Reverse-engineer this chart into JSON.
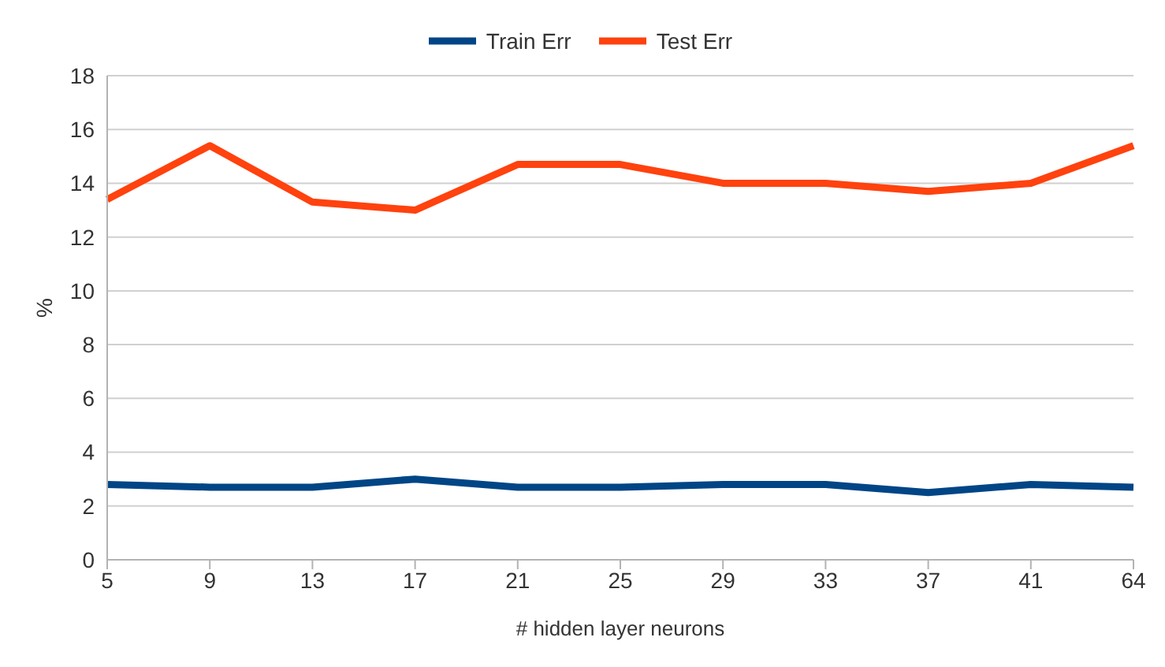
{
  "chart_data": {
    "type": "line",
    "xlabel": "# hidden layer neurons",
    "ylabel": "%",
    "categories": [
      "5",
      "9",
      "13",
      "17",
      "21",
      "25",
      "29",
      "33",
      "37",
      "41",
      "64"
    ],
    "series": [
      {
        "name": "Train Err",
        "color": "#004586",
        "values": [
          2.8,
          2.7,
          2.7,
          3.0,
          2.7,
          2.7,
          2.8,
          2.8,
          2.5,
          2.8,
          2.7
        ]
      },
      {
        "name": "Test Err",
        "color": "#ff420e",
        "values": [
          13.4,
          15.4,
          13.3,
          13.0,
          14.7,
          14.7,
          14.0,
          14.0,
          13.7,
          14.0,
          15.4
        ]
      }
    ],
    "ylim": [
      0,
      18
    ],
    "yticks": [
      0,
      2,
      4,
      6,
      8,
      10,
      12,
      14,
      16,
      18
    ],
    "grid": "y",
    "legend": "top",
    "marker": "none",
    "line_style": "solid"
  }
}
